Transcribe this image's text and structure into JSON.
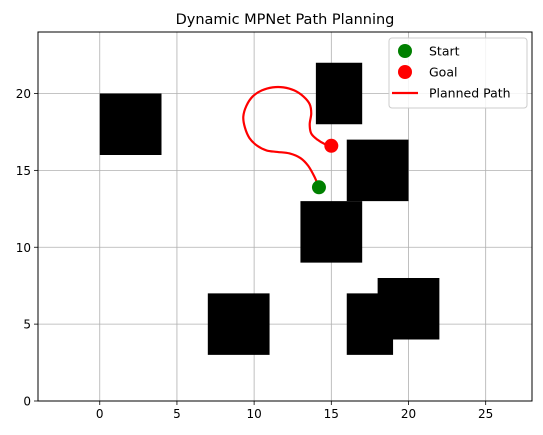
{
  "chart_data": {
    "type": "path-planning",
    "title": "Dynamic MPNet Path Planning",
    "xlim": [
      -4,
      28
    ],
    "ylim": [
      0,
      24
    ],
    "xticks": [
      0,
      5,
      10,
      15,
      20,
      25
    ],
    "yticks": [
      0,
      5,
      10,
      15,
      20
    ],
    "grid": true,
    "legend_position": "top-right",
    "colors": {
      "obstacle": "#000000",
      "start": "#008000",
      "goal": "#ff0000",
      "path": "#ff0000",
      "grid": "#b0b0b0"
    },
    "obstacles": [
      {
        "x0": 0,
        "y0": 16,
        "x1": 4,
        "y1": 20
      },
      {
        "x0": 14,
        "y0": 18,
        "x1": 17,
        "y1": 22
      },
      {
        "x0": 16,
        "y0": 13,
        "x1": 20,
        "y1": 17
      },
      {
        "x0": 13,
        "y0": 9,
        "x1": 17,
        "y1": 13
      },
      {
        "x0": 7,
        "y0": 3,
        "x1": 11,
        "y1": 7
      },
      {
        "x0": 16,
        "y0": 3,
        "x1": 19,
        "y1": 7
      },
      {
        "x0": 18,
        "y0": 4,
        "x1": 22,
        "y1": 8
      }
    ],
    "start": {
      "x": 14.2,
      "y": 13.9
    },
    "goal": {
      "x": 15.0,
      "y": 16.6
    },
    "path": [
      [
        14.2,
        13.9
      ],
      [
        13.9,
        14.6
      ],
      [
        13.5,
        15.3
      ],
      [
        13.0,
        15.8
      ],
      [
        12.3,
        16.1
      ],
      [
        11.5,
        16.2
      ],
      [
        10.8,
        16.3
      ],
      [
        10.2,
        16.6
      ],
      [
        9.7,
        17.1
      ],
      [
        9.4,
        17.8
      ],
      [
        9.3,
        18.5
      ],
      [
        9.5,
        19.2
      ],
      [
        9.9,
        19.8
      ],
      [
        10.5,
        20.2
      ],
      [
        11.2,
        20.4
      ],
      [
        11.9,
        20.4
      ],
      [
        12.6,
        20.2
      ],
      [
        13.2,
        19.8
      ],
      [
        13.6,
        19.3
      ],
      [
        13.7,
        18.7
      ],
      [
        13.6,
        18.0
      ],
      [
        13.7,
        17.4
      ],
      [
        14.1,
        17.0
      ],
      [
        14.6,
        16.7
      ],
      [
        15.0,
        16.6
      ]
    ],
    "legend": [
      {
        "label": "Start",
        "marker": "circle",
        "color": "#008000"
      },
      {
        "label": "Goal",
        "marker": "circle",
        "color": "#ff0000"
      },
      {
        "label": "Planned Path",
        "marker": "line",
        "color": "#ff0000"
      }
    ]
  }
}
